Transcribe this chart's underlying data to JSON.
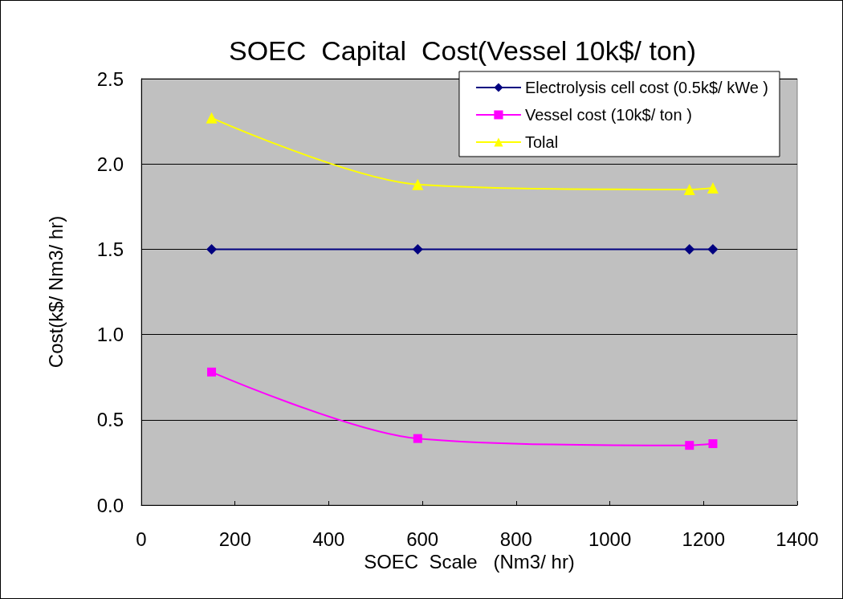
{
  "chart_data": {
    "type": "line",
    "title": "SOEC  Capital  Cost(Vessel 10k$/ ton)",
    "xlabel": "SOEC  Scale   (Nm3/ hr)",
    "ylabel": "Cost(k$/ Nm3/ hr)",
    "x": [
      150,
      590,
      1170,
      1220
    ],
    "series": [
      {
        "name": "Electrolysis cell cost (0.5k$/ kWe )",
        "color": "#000080",
        "marker": "diamond",
        "values": [
          1.5,
          1.5,
          1.5,
          1.5
        ]
      },
      {
        "name": "Vessel cost (10k$/ ton )",
        "color": "#ff00ff",
        "marker": "square",
        "values": [
          0.78,
          0.39,
          0.35,
          0.36
        ]
      },
      {
        "name": "Tolal",
        "color": "#ffff00",
        "marker": "triangle",
        "values": [
          2.27,
          1.88,
          1.85,
          1.86
        ]
      }
    ],
    "xlim": [
      0,
      1400
    ],
    "xticks": [
      0,
      200,
      400,
      600,
      800,
      1000,
      1200,
      1400
    ],
    "ylim": [
      0,
      2.5
    ],
    "yticks": [
      {
        "value": 0,
        "label": "0.0"
      },
      {
        "value": 0.5,
        "label": "0.5"
      },
      {
        "value": 1,
        "label": "1.0"
      },
      {
        "value": 1.5,
        "label": "1.5"
      },
      {
        "value": 2,
        "label": "2.0"
      },
      {
        "value": 2.5,
        "label": "2.5"
      }
    ],
    "grid": "y",
    "legend": "top right",
    "line_style": "solid"
  }
}
